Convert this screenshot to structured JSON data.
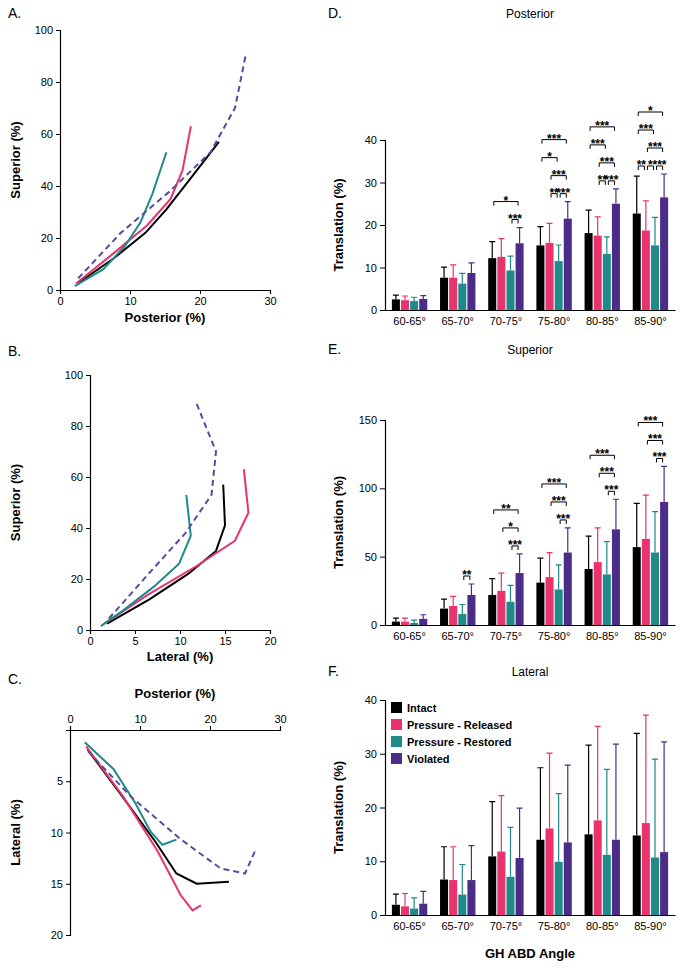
{
  "chart_data": [
    {
      "type": "line",
      "panel_label": "A.",
      "xlabel": "Posterior (%)",
      "ylabel": "Superior (%)",
      "xlim": [
        0,
        30
      ],
      "xticks": [
        0,
        10,
        20,
        30
      ],
      "ylim": [
        0,
        100
      ],
      "yticks": [
        0,
        20,
        40,
        60,
        80,
        100
      ],
      "series": [
        {
          "color": "#000000",
          "line_style": "solid",
          "x": [
            2.5,
            7.6,
            12.2,
            15.2,
            18.1,
            22.7
          ],
          "values": [
            2.5,
            12,
            22,
            31,
            41,
            57
          ]
        },
        {
          "color": "#e8336e",
          "line_style": "solid",
          "x": [
            2.3,
            7.6,
            12.5,
            15.8,
            17.5,
            18.7
          ],
          "values": [
            2.5,
            14,
            25,
            35,
            46,
            63
          ]
        },
        {
          "color": "#1f8a89",
          "line_style": "solid",
          "x": [
            2.1,
            6.2,
            9.3,
            11.5,
            13.2,
            15.2
          ],
          "values": [
            1.5,
            8,
            17,
            26,
            37,
            53
          ]
        },
        {
          "color": "#5a4a9e",
          "line_style": "dashed",
          "x": [
            2.6,
            8.7,
            15.7,
            21.5,
            25.0,
            26.5
          ],
          "values": [
            4.5,
            22,
            38,
            53,
            70,
            90
          ]
        }
      ]
    },
    {
      "type": "line",
      "panel_label": "B.",
      "xlabel": "Lateral (%)",
      "ylabel": "Superior (%)",
      "xlim": [
        0,
        20
      ],
      "xticks": [
        0,
        5,
        10,
        15,
        20
      ],
      "ylim": [
        0,
        100
      ],
      "yticks": [
        0,
        20,
        40,
        60,
        80,
        100
      ],
      "series": [
        {
          "color": "#000000",
          "line_style": "solid",
          "x": [
            1.9,
            6.6,
            10.9,
            14.0,
            15.0,
            14.8
          ],
          "values": [
            2.5,
            12,
            22,
            31,
            41,
            57
          ]
        },
        {
          "color": "#e8336e",
          "line_style": "solid",
          "x": [
            1.6,
            6.5,
            11.8,
            16.1,
            17.6,
            17.1
          ],
          "values": [
            2.5,
            14,
            25,
            35,
            46,
            63
          ]
        },
        {
          "color": "#1f8a89",
          "line_style": "solid",
          "x": [
            1.2,
            3.8,
            7.1,
            9.9,
            11.2,
            10.7
          ],
          "values": [
            1.5,
            8,
            17,
            26,
            37,
            53
          ]
        },
        {
          "color": "#5a4a9e",
          "line_style": "dashed",
          "x": [
            2.1,
            6.5,
            10.6,
            13.5,
            14.0,
            11.7
          ],
          "values": [
            4.5,
            22,
            38,
            53,
            70,
            90
          ]
        }
      ]
    },
    {
      "type": "line",
      "panel_label": "C.",
      "xlabel": "Posterior (%)",
      "ylabel": "Lateral (%)",
      "xlim": [
        0,
        30
      ],
      "xticks": [
        0,
        10,
        20,
        30
      ],
      "ylim": [
        0,
        20
      ],
      "yticks": [
        5,
        10,
        15,
        20
      ],
      "series": [
        {
          "color": "#000000",
          "line_style": "solid",
          "x": [
            2.5,
            7.6,
            12.2,
            15.2,
            18.1,
            22.7
          ],
          "values": [
            1.9,
            6.6,
            10.9,
            14.0,
            15.0,
            14.8
          ]
        },
        {
          "color": "#e8336e",
          "line_style": "solid",
          "x": [
            2.3,
            7.6,
            12.5,
            15.8,
            17.5,
            18.7
          ],
          "values": [
            1.6,
            6.5,
            11.8,
            16.1,
            17.6,
            17.1
          ]
        },
        {
          "color": "#1f8a89",
          "line_style": "solid",
          "x": [
            2.1,
            6.2,
            9.3,
            11.5,
            13.2,
            15.2
          ],
          "values": [
            1.2,
            3.8,
            7.1,
            9.9,
            11.2,
            10.7
          ]
        },
        {
          "color": "#5a4a9e",
          "line_style": "dashed",
          "x": [
            2.6,
            8.7,
            15.7,
            21.5,
            25.0,
            26.5
          ],
          "values": [
            2.1,
            6.5,
            10.6,
            13.5,
            14.0,
            11.7
          ]
        }
      ]
    },
    {
      "type": "bar",
      "panel_label": "D.",
      "title": "Posterior",
      "ylabel": "Translation (%)",
      "categories": [
        "60-65°",
        "65-70°",
        "70-75°",
        "75-80°",
        "80-85°",
        "85-90°"
      ],
      "ylim": [
        0,
        40
      ],
      "yticks": [
        0,
        10,
        20,
        30,
        40
      ],
      "series": [
        {
          "name": "Intact",
          "color": "#000000",
          "values": [
            2.5,
            7.6,
            12.2,
            15.2,
            18.1,
            22.7
          ],
          "errors": [
            1.0,
            2.5,
            3.9,
            4.4,
            5.4,
            8.8
          ]
        },
        {
          "name": "Pressure - Released",
          "color": "#e8336e",
          "values": [
            2.3,
            7.6,
            12.5,
            15.8,
            17.5,
            18.7
          ],
          "errors": [
            1.0,
            3.0,
            4.3,
            4.6,
            4.4,
            7.0
          ]
        },
        {
          "name": "Pressure - Restored",
          "color": "#1f8a89",
          "values": [
            2.1,
            6.2,
            9.3,
            11.5,
            13.2,
            15.2
          ],
          "errors": [
            0.9,
            2.4,
            3.4,
            3.8,
            4.0,
            6.6
          ]
        },
        {
          "name": "Violated",
          "color": "#4b2d87",
          "values": [
            2.6,
            8.7,
            15.7,
            21.5,
            25.0,
            26.5
          ],
          "errors": [
            0.8,
            2.4,
            3.7,
            4.0,
            3.5,
            5.5
          ]
        }
      ],
      "annotations": [
        {
          "category": 2,
          "from": 0,
          "to": 3,
          "label": "*"
        },
        {
          "category": 2,
          "from": 2,
          "to": 3,
          "label": "***"
        },
        {
          "category": 3,
          "from": 0,
          "to": 3,
          "label": "***"
        },
        {
          "category": 3,
          "from": 1,
          "to": 3,
          "label": "***"
        },
        {
          "category": 3,
          "from": 0,
          "to": 2,
          "label": "*"
        },
        {
          "category": 3,
          "from": 1,
          "to": 2,
          "label": "**"
        },
        {
          "category": 3,
          "from": 2,
          "to": 3,
          "label": "***"
        },
        {
          "category": 4,
          "from": 0,
          "to": 3,
          "label": "***"
        },
        {
          "category": 4,
          "from": 1,
          "to": 3,
          "label": "***"
        },
        {
          "category": 4,
          "from": 0,
          "to": 2,
          "label": "***"
        },
        {
          "category": 4,
          "from": 1,
          "to": 2,
          "label": "**"
        },
        {
          "category": 4,
          "from": 2,
          "to": 3,
          "label": "***"
        },
        {
          "category": 5,
          "from": 0,
          "to": 3,
          "label": "*"
        },
        {
          "category": 5,
          "from": 1,
          "to": 3,
          "label": "***"
        },
        {
          "category": 5,
          "from": 0,
          "to": 2,
          "label": "***"
        },
        {
          "category": 5,
          "from": 0,
          "to": 1,
          "label": "**"
        },
        {
          "category": 5,
          "from": 1,
          "to": 2,
          "label": "*"
        },
        {
          "category": 5,
          "from": 2,
          "to": 3,
          "label": "***"
        }
      ]
    },
    {
      "type": "bar",
      "panel_label": "E.",
      "title": "Superior",
      "ylabel": "Translation (%)",
      "categories": [
        "60-65°",
        "65-70°",
        "70-75°",
        "75-80°",
        "80-85°",
        "85-90°"
      ],
      "ylim": [
        0,
        150
      ],
      "yticks": [
        0,
        50,
        100,
        150
      ],
      "series": [
        {
          "name": "Intact",
          "color": "#000000",
          "values": [
            2.5,
            12,
            22,
            31,
            41,
            57
          ],
          "errors": [
            2.5,
            7,
            12,
            18,
            24,
            32
          ]
        },
        {
          "name": "Pressure - Released",
          "color": "#e8336e",
          "values": [
            2.5,
            14,
            25,
            35,
            46,
            63
          ],
          "errors": [
            2.5,
            7,
            13,
            18,
            25,
            32
          ]
        },
        {
          "name": "Pressure - Restored",
          "color": "#1f8a89",
          "values": [
            1.5,
            8,
            17,
            26,
            37,
            53
          ],
          "errors": [
            2.0,
            7,
            12,
            18,
            24,
            30
          ]
        },
        {
          "name": "Violated",
          "color": "#4b2d87",
          "values": [
            4.5,
            22,
            38,
            53,
            70,
            90
          ],
          "errors": [
            3.0,
            8,
            14,
            18,
            22,
            26
          ]
        }
      ],
      "annotations": [
        {
          "category": 1,
          "from": 2,
          "to": 3,
          "label": "**"
        },
        {
          "category": 2,
          "from": 0,
          "to": 3,
          "label": "**"
        },
        {
          "category": 2,
          "from": 1,
          "to": 3,
          "label": "*"
        },
        {
          "category": 2,
          "from": 2,
          "to": 3,
          "label": "***"
        },
        {
          "category": 3,
          "from": 0,
          "to": 3,
          "label": "***"
        },
        {
          "category": 3,
          "from": 1,
          "to": 3,
          "label": "***"
        },
        {
          "category": 3,
          "from": 2,
          "to": 3,
          "label": "***"
        },
        {
          "category": 4,
          "from": 0,
          "to": 3,
          "label": "***"
        },
        {
          "category": 4,
          "from": 1,
          "to": 3,
          "label": "***"
        },
        {
          "category": 4,
          "from": 2,
          "to": 3,
          "label": "***"
        },
        {
          "category": 5,
          "from": 0,
          "to": 3,
          "label": "***"
        },
        {
          "category": 5,
          "from": 1,
          "to": 3,
          "label": "***"
        },
        {
          "category": 5,
          "from": 2,
          "to": 3,
          "label": "***"
        }
      ]
    },
    {
      "type": "bar",
      "panel_label": "F.",
      "title": "Lateral",
      "ylabel": "Translation (%)",
      "xlabel": "GH ABD Angle",
      "categories": [
        "60-65°",
        "65-70°",
        "70-75°",
        "75-80°",
        "80-85°",
        "85-90°"
      ],
      "ylim": [
        0,
        40
      ],
      "yticks": [
        0,
        10,
        20,
        30,
        40
      ],
      "legend": "top-left",
      "series": [
        {
          "name": "Intact",
          "color": "#000000",
          "values": [
            1.9,
            6.6,
            10.9,
            14.0,
            15.0,
            14.8
          ],
          "errors": [
            2.0,
            6.1,
            10.2,
            13.4,
            16.6,
            19.0
          ]
        },
        {
          "name": "Pressure - Released",
          "color": "#e8336e",
          "values": [
            1.6,
            6.5,
            11.8,
            16.1,
            17.6,
            17.1
          ],
          "errors": [
            2.4,
            6.2,
            10.4,
            14.0,
            17.5,
            20.1
          ]
        },
        {
          "name": "Pressure - Restored",
          "color": "#1f8a89",
          "values": [
            1.2,
            3.8,
            7.1,
            9.9,
            11.2,
            10.7
          ],
          "errors": [
            2.0,
            5.6,
            9.2,
            12.7,
            15.9,
            18.3
          ]
        },
        {
          "name": "Violated",
          "color": "#4b2d87",
          "values": [
            2.1,
            6.5,
            10.6,
            13.5,
            14.0,
            11.7
          ],
          "errors": [
            2.3,
            6.4,
            9.3,
            14.4,
            17.8,
            20.5
          ]
        }
      ]
    }
  ]
}
